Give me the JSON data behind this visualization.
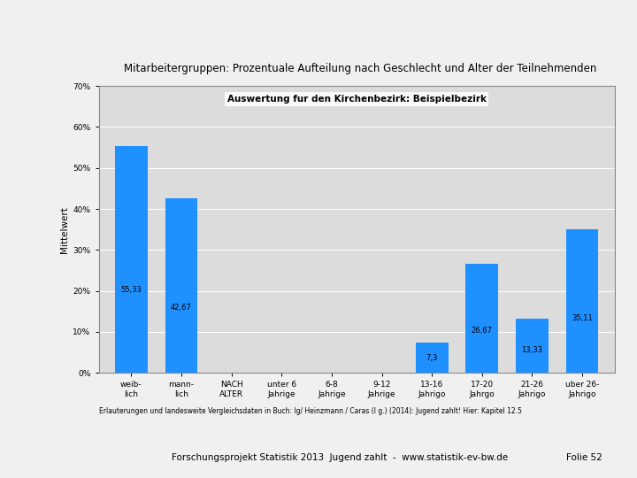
{
  "title": "Mitarbeitergruppen: Prozentuale Aufteilung nach Geschlecht und Alter der Teilnehmenden",
  "subtitle": "Auswertung fur den Kirchenbezirk: Beispielbezirk",
  "ylabel": "Mittelwert",
  "footnote": "Erlauterungen und landesweite Vergleichsdaten in Buch: lg/ Heinzmann / Caras (l g.) (2014): Jugend zahlt! Hier: Kapitel 12.5",
  "footer_text": "Forschungsprojekt Statistik 2013  Jugend zahlt  -  www.statistik-ev-bw.de",
  "footer_right": "Folie 52",
  "categories": [
    "weib-\nlich",
    "mann-\nlich",
    "NACH\nALTER",
    "unter 6\nJahrige",
    "6-8\nJahrige",
    "9-12\nJahrige",
    "13-16\nJahrigo",
    "17-20\nJahrgo",
    "21-26\nJahrigo",
    "uber 26-\nJahrigo"
  ],
  "values": [
    55.33,
    42.67,
    0.05,
    0.05,
    0.05,
    0.05,
    7.3,
    26.67,
    13.33,
    35.11
  ],
  "bar_color": "#1E90FF",
  "ylim": [
    0,
    70
  ],
  "yticks": [
    0,
    10,
    20,
    30,
    40,
    50,
    60,
    70
  ],
  "ytick_labels": [
    "0%",
    "10%",
    "20%",
    "30%",
    "40%",
    "50%",
    "60%",
    "70%"
  ],
  "value_labels": [
    "55,33",
    "42,67",
    "",
    "",
    "",
    "",
    "7,3",
    "26,67",
    "13,33",
    "35,11"
  ],
  "plot_bg": "#DCDCDC",
  "fig_bg": "#F0F0F0",
  "title_fontsize": 8.5,
  "subtitle_fontsize": 7.5,
  "axis_label_fontsize": 7.5,
  "tick_fontsize": 6.5,
  "bar_label_fontsize": 6.0,
  "footnote_fontsize": 5.5,
  "footer_fontsize": 7.5
}
